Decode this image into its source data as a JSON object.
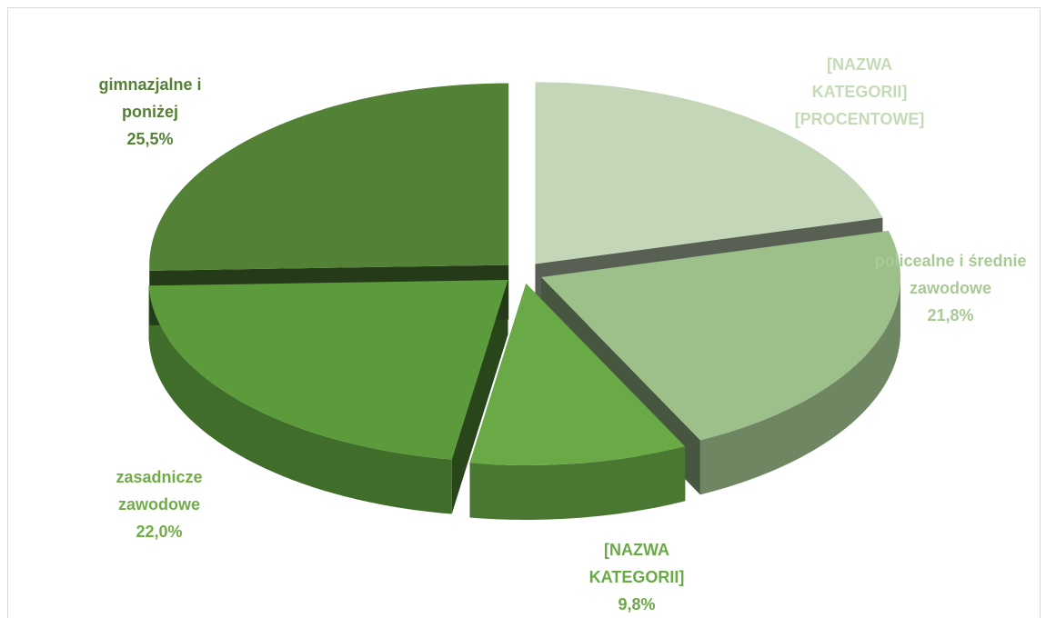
{
  "chart_data": {
    "type": "pie3d",
    "categories": [
      "[NAZWA KATEGORII] [PROCENTOWE]",
      "policealne i średnie zawodowe",
      "[NAZWA KATEGORII]",
      "zasadnicze zawodowe",
      "gimnazjalne i poniżej"
    ],
    "values": [
      20.9,
      21.8,
      9.8,
      22.0,
      25.5
    ],
    "value_labels": [
      null,
      "21,8%",
      "9,8%",
      "22,0%",
      "25,5%"
    ],
    "colors": [
      "#c3d6b8",
      "#9dc08b",
      "#6aaa46",
      "#5b9b3b",
      "#538135"
    ],
    "label_colors": [
      "#c5dbb8",
      "#a8cb95",
      "#6aaa46",
      "#70ad47",
      "#538135"
    ]
  }
}
